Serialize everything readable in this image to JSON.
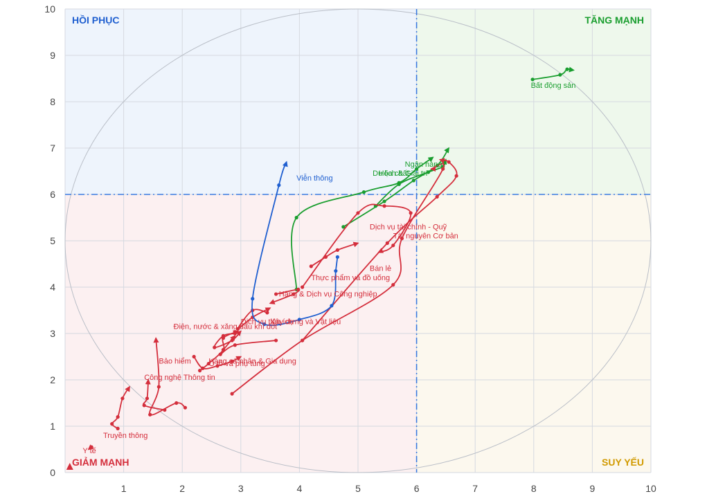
{
  "chart_data": {
    "type": "line",
    "title": "",
    "xlabel": "",
    "ylabel": "",
    "xlim": [
      0,
      10
    ],
    "ylim": [
      0,
      10
    ],
    "x_ticks": [
      "1",
      "2",
      "3",
      "4",
      "5",
      "6",
      "7",
      "8",
      "9",
      "10"
    ],
    "y_ticks": [
      "0",
      "1",
      "2",
      "3",
      "4",
      "5",
      "6",
      "7",
      "8",
      "9",
      "10"
    ],
    "grid": true,
    "divider": {
      "x": 6,
      "y": 6
    },
    "colors": {
      "tang": "#1a9e2f",
      "giam": "#d42e3c",
      "hoi": "#1f5fd0",
      "suy": "#d19a00",
      "tang_bg": "#eef8ec",
      "hoi_bg": "#eef4fc",
      "giam_bg": "#fcf0f1",
      "suy_bg": "#fcf8ee"
    },
    "quadrants": [
      {
        "key": "hoi",
        "label": "HỒI PHỤC"
      },
      {
        "key": "tang",
        "label": "TĂNG MẠNH"
      },
      {
        "key": "giam",
        "label": "GIẢM MẠNH"
      },
      {
        "key": "suy",
        "label": "SUY YẾU"
      }
    ],
    "series": [
      {
        "name": "Bất động sản",
        "color": "tang",
        "label_at": [
          7.95,
          8.3
        ],
        "points": [
          [
            7.98,
            8.48
          ],
          [
            8.45,
            8.58
          ],
          [
            8.57,
            8.7
          ],
          [
            8.68,
            8.68
          ]
        ]
      },
      {
        "name": "Ngân hàng",
        "color": "tang",
        "label_at": [
          5.8,
          6.6
        ],
        "points": [
          [
            4.75,
            5.3
          ],
          [
            5.45,
            5.85
          ],
          [
            5.95,
            6.3
          ],
          [
            6.35,
            6.62
          ],
          [
            6.55,
            7.0
          ]
        ]
      },
      {
        "name": "Hóa chất",
        "color": "tang",
        "label_at": [
          5.35,
          6.4
        ],
        "points": [
          [
            5.3,
            5.75
          ],
          [
            5.7,
            6.22
          ],
          [
            6.2,
            6.48
          ],
          [
            6.45,
            6.6
          ],
          [
            6.5,
            6.75
          ]
        ]
      },
      {
        "name": "Du lịch & Giải trí",
        "color": "tang",
        "label_at": [
          5.25,
          6.4
        ],
        "points": [
          [
            3.95,
            3.95
          ],
          [
            3.95,
            5.5
          ],
          [
            5.1,
            6.05
          ],
          [
            5.7,
            6.25
          ],
          [
            6.0,
            6.55
          ],
          [
            6.28,
            6.8
          ]
        ]
      },
      {
        "name": "Dịch vụ tài chính - Quỹ",
        "color": "giam",
        "label_at": [
          5.2,
          5.25
        ],
        "points": [
          [
            4.05,
            4.0
          ],
          [
            5.0,
            5.6
          ],
          [
            5.45,
            5.75
          ],
          [
            5.9,
            5.6
          ],
          [
            5.6,
            4.9
          ],
          [
            5.35,
            4.75
          ]
        ]
      },
      {
        "name": "Tài nguyên Cơ bản",
        "color": "giam",
        "label_at": [
          5.6,
          5.05
        ],
        "points": [
          [
            4.05,
            2.85
          ],
          [
            5.5,
            4.95
          ],
          [
            6.35,
            5.95
          ],
          [
            6.68,
            6.4
          ],
          [
            6.55,
            6.7
          ],
          [
            6.4,
            6.75
          ]
        ]
      },
      {
        "name": "Bán lẻ",
        "color": "giam",
        "label_at": [
          5.2,
          4.35
        ],
        "points": [
          [
            2.85,
            1.7
          ],
          [
            4.05,
            2.85
          ],
          [
            5.6,
            4.05
          ],
          [
            5.75,
            5.05
          ],
          [
            6.45,
            6.55
          ],
          [
            6.25,
            6.55
          ]
        ]
      },
      {
        "name": "Thực phẩm và đồ uống",
        "color": "giam",
        "label_at": [
          4.2,
          4.15
        ],
        "points": [
          [
            4.2,
            4.45
          ],
          [
            4.45,
            4.65
          ],
          [
            4.65,
            4.8
          ],
          [
            5.0,
            4.95
          ]
        ]
      },
      {
        "name": "Hàng & Dịch vụ Công nghiệp",
        "color": "giam",
        "label_at": [
          3.65,
          3.8
        ],
        "points": [
          [
            3.6,
            3.85
          ],
          [
            3.98,
            3.95
          ],
          [
            3.9,
            3.85
          ],
          [
            3.5,
            3.65
          ]
        ]
      },
      {
        "name": "Xây dựng và Vật liệu",
        "color": "giam",
        "label_at": [
          3.5,
          3.2
        ],
        "points": [
          [
            3.45,
            3.45
          ],
          [
            3.2,
            3.5
          ],
          [
            2.95,
            3.1
          ],
          [
            3.2,
            3.35
          ],
          [
            3.5,
            3.55
          ]
        ]
      },
      {
        "name": "Dịch vụ tiện ích",
        "color": "giam",
        "label_at": [
          3.0,
          3.2
        ],
        "points": [
          [
            3.6,
            2.85
          ],
          [
            2.9,
            2.75
          ],
          [
            2.65,
            2.55
          ],
          [
            2.9,
            2.95
          ]
        ]
      },
      {
        "name": "Điện, nước & xăng dầu khí đốt",
        "color": "giam",
        "label_at": [
          1.85,
          3.1
        ],
        "points": [
          [
            2.9,
            3.0
          ],
          [
            2.7,
            2.95
          ],
          [
            2.55,
            2.7
          ],
          [
            2.85,
            2.85
          ],
          [
            3.0,
            3.05
          ]
        ]
      },
      {
        "name": "Ô tô và phụ tùng",
        "color": "giam",
        "label_at": [
          2.45,
          2.3
        ],
        "points": [
          [
            2.3,
            2.2
          ],
          [
            2.45,
            2.35
          ],
          [
            2.7,
            2.65
          ],
          [
            2.7,
            2.9
          ],
          [
            2.95,
            3.05
          ]
        ]
      },
      {
        "name": "Hàng cá nhân & Gia dụng",
        "color": "giam",
        "label_at": [
          2.45,
          2.35
        ],
        "points": [
          [
            2.2,
            2.5
          ],
          [
            2.35,
            2.25
          ],
          [
            2.6,
            2.3
          ],
          [
            2.85,
            2.4
          ],
          [
            3.0,
            2.5
          ]
        ]
      },
      {
        "name": "Bảo hiểm",
        "color": "giam",
        "label_at": [
          1.6,
          2.35
        ],
        "points": [
          [
            2.05,
            1.4
          ],
          [
            1.9,
            1.5
          ],
          [
            1.45,
            1.25
          ],
          [
            1.6,
            1.85
          ],
          [
            1.55,
            2.9
          ]
        ]
      },
      {
        "name": "Công nghệ Thông tin",
        "color": "giam",
        "label_at": [
          1.35,
          2.0
        ],
        "points": [
          [
            1.7,
            1.35
          ],
          [
            1.35,
            1.45
          ],
          [
            1.4,
            1.6
          ],
          [
            1.42,
            2.0
          ]
        ]
      },
      {
        "name": "Truyền thông",
        "color": "giam",
        "label_at": [
          0.65,
          0.75
        ],
        "points": [
          [
            0.9,
            0.95
          ],
          [
            0.8,
            1.05
          ],
          [
            0.9,
            1.2
          ],
          [
            0.98,
            1.6
          ],
          [
            1.1,
            1.85
          ]
        ]
      },
      {
        "name": "Y tế",
        "color": "giam",
        "label_at": [
          0.3,
          0.42
        ],
        "points": [
          [
            0.45,
            0.55
          ],
          [
            0.4,
            0.5
          ]
        ]
      },
      {
        "name": "Viễn thông",
        "color": "hoi",
        "label_at": [
          3.95,
          6.3
        ],
        "points": [
          [
            4.65,
            4.65
          ],
          [
            4.62,
            4.35
          ],
          [
            4.55,
            3.6
          ],
          [
            4.0,
            3.3
          ],
          [
            3.4,
            3.2
          ],
          [
            3.2,
            3.75
          ],
          [
            3.65,
            6.2
          ],
          [
            3.78,
            6.7
          ]
        ]
      }
    ],
    "extra_points": [
      [
        0.08,
        0.12
      ]
    ]
  }
}
